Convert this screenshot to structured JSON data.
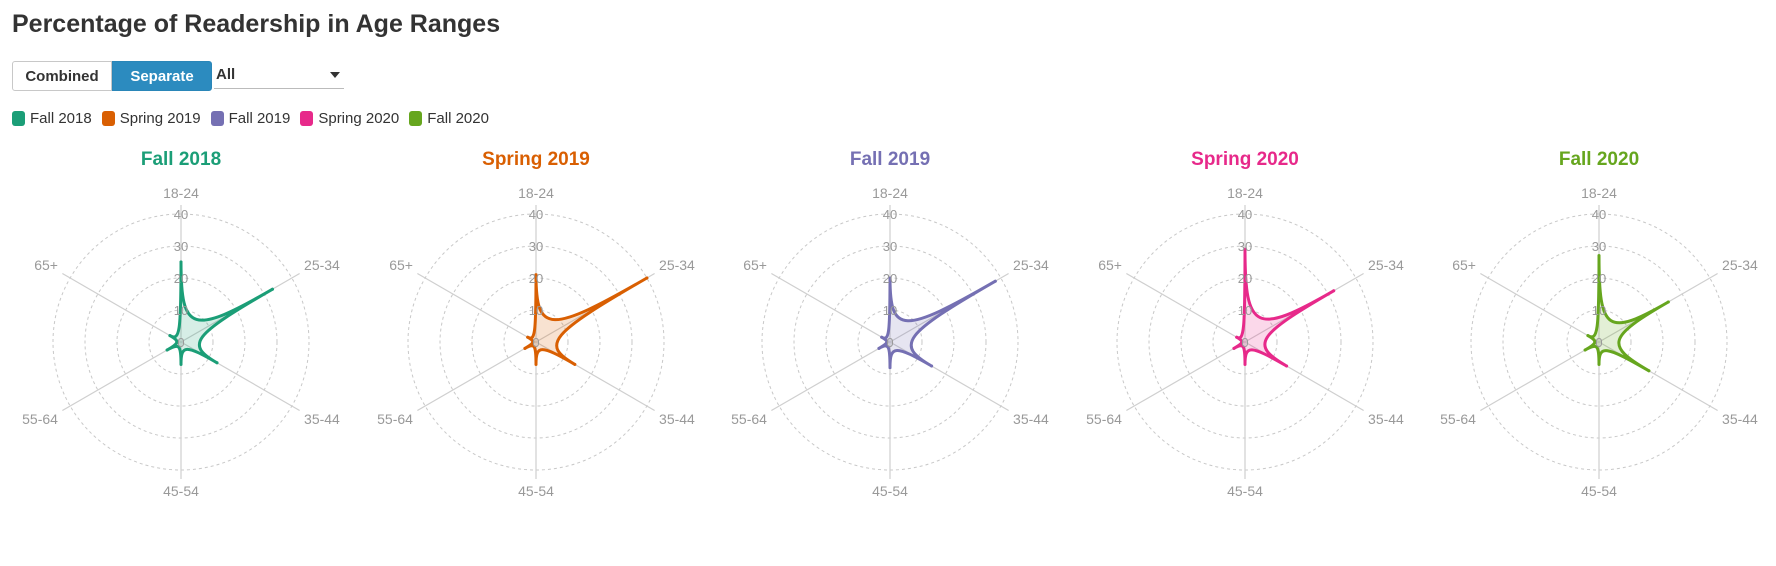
{
  "page": {
    "title": "Percentage of Readership in Age Ranges",
    "toggle": {
      "combined_label": "Combined",
      "separate_label": "Separate",
      "active": "Separate"
    },
    "filter": {
      "selected": "All"
    }
  },
  "chart_data": {
    "type": "radar",
    "axes": [
      "18-24",
      "25-34",
      "35-44",
      "45-54",
      "55-64",
      "65+"
    ],
    "rlim": [
      0,
      40
    ],
    "ring_ticks": [
      10,
      20,
      30,
      40
    ],
    "ring_labels": [
      "0",
      "10",
      "20",
      "30",
      "40"
    ],
    "grid": true,
    "legend_position": "top-left",
    "series": [
      {
        "name": "Fall 2018",
        "color": "#1b9e77",
        "values": [
          25,
          33,
          13,
          7,
          5,
          4
        ]
      },
      {
        "name": "Spring 2019",
        "color": "#d95f02",
        "values": [
          21,
          40,
          14,
          7,
          4,
          3
        ]
      },
      {
        "name": "Fall 2019",
        "color": "#7570b3",
        "values": [
          20,
          38,
          15,
          8,
          4,
          3
        ]
      },
      {
        "name": "Spring 2020",
        "color": "#e7298a",
        "values": [
          29,
          32,
          15,
          7,
          4,
          3
        ]
      },
      {
        "name": "Fall 2020",
        "color": "#66a61e",
        "values": [
          27,
          25,
          18,
          7,
          5,
          4
        ]
      }
    ]
  }
}
